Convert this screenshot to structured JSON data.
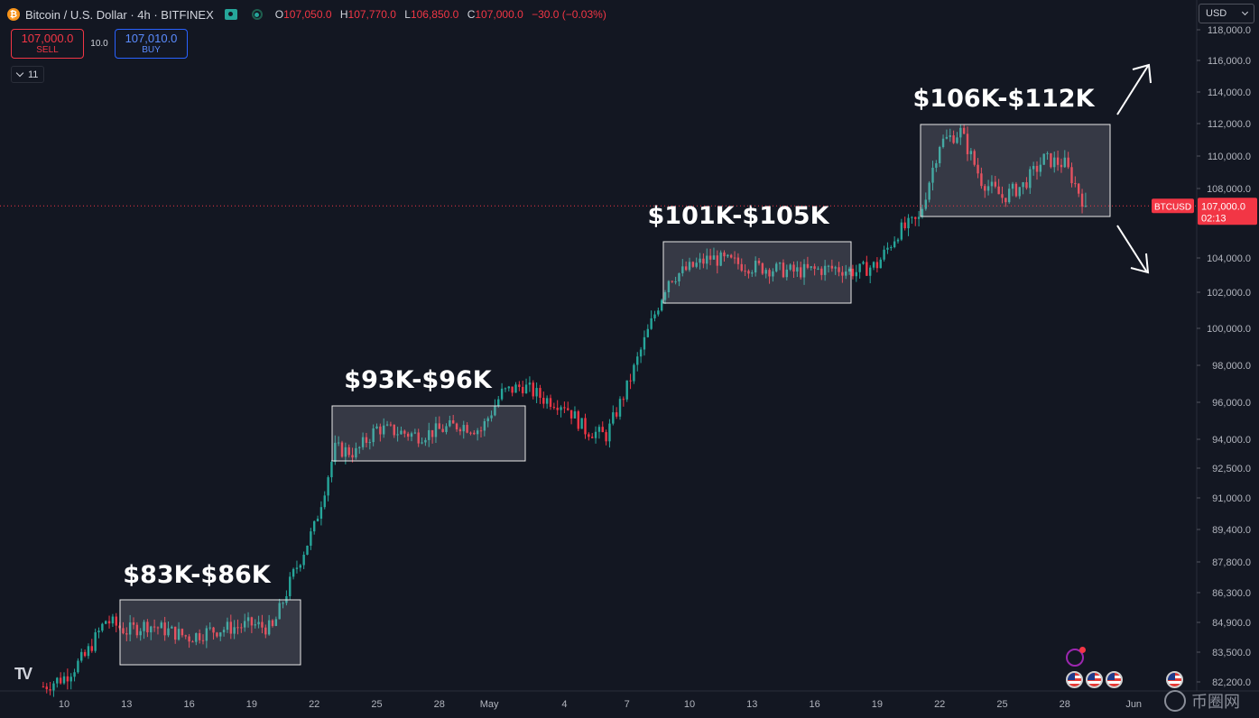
{
  "legend": {
    "icon": "btc-coin-icon",
    "symbol": "Bitcoin / U.S. Dollar · 4h · BITFINEX",
    "open_k": "O",
    "open": "107,050.0",
    "high_k": "H",
    "high": "107,770.0",
    "low_k": "L",
    "low": "106,850.0",
    "close_k": "C",
    "close": "107,000.0",
    "change": "−30.0 (−0.03%)"
  },
  "trade": {
    "sell_price": "107,000.0",
    "sell_label": "SELL",
    "spread": "10.0",
    "buy_price": "107,010.0",
    "buy_label": "BUY"
  },
  "indicators_toggle": "11",
  "currency": "USD",
  "price_scale": {
    "ticks": [
      "118,000.0",
      "116,000.0",
      "114,000.0",
      "112,000.0",
      "110,000.0",
      "108,000.0",
      "104,000.0",
      "102,000.0",
      "100,000.0",
      "98,000.0",
      "96,000.0",
      "94,000.0",
      "92,500.0",
      "91,000.0",
      "89,400.0",
      "87,800.0",
      "86,300.0",
      "84,900.0",
      "83,500.0",
      "82,200.0"
    ],
    "current_label": "BTCUSD",
    "current_price": "107,000.0",
    "countdown": "02:13"
  },
  "time_axis": {
    "labels": [
      "10",
      "13",
      "16",
      "19",
      "22",
      "25",
      "28",
      "May",
      "4",
      "7",
      "10",
      "13",
      "16",
      "19",
      "22",
      "25",
      "28",
      "Jun"
    ]
  },
  "annotations": [
    "$83K-$86K",
    "$93K-$96K",
    "$101K-$105K",
    "$106K-$112K"
  ],
  "watermark": "币圈网",
  "colors": {
    "up": "#26a69a",
    "down": "#f23645",
    "background": "#131722",
    "text": "#d1d4dc"
  },
  "chart_data": {
    "type": "candlestick",
    "title": "Bitcoin / U.S. Dollar · 4h · BITFINEX",
    "ylim": [
      82000,
      118500
    ],
    "x_start": "Apr 9",
    "x_end": "Jun 1",
    "ranges": [
      {
        "label": "$83K-$86K",
        "low": 83000,
        "high": 86000
      },
      {
        "label": "$93K-$96K",
        "low": 93000,
        "high": 96000
      },
      {
        "label": "$101K-$105K",
        "low": 101000,
        "high": 105000
      },
      {
        "label": "$106K-$112K",
        "low": 106000,
        "high": 112000
      }
    ],
    "last_price": 107000,
    "close_anchors": [
      [
        "Apr 9",
        82000
      ],
      [
        "Apr 10",
        82400
      ],
      [
        "Apr 11",
        83300
      ],
      [
        "Apr 12",
        85000
      ],
      [
        "Apr 13",
        84500
      ],
      [
        "Apr 14",
        84800
      ],
      [
        "Apr 16",
        84200
      ],
      [
        "Apr 17",
        84500
      ],
      [
        "Apr 19",
        84800
      ],
      [
        "Apr 20",
        84600
      ],
      [
        "Apr 21",
        87200
      ],
      [
        "Apr 22",
        89500
      ],
      [
        "Apr 23",
        93500
      ],
      [
        "Apr 24",
        93300
      ],
      [
        "Apr 25",
        94600
      ],
      [
        "Apr 27",
        94200
      ],
      [
        "Apr 29",
        94800
      ],
      [
        "Apr 30",
        94500
      ],
      [
        "May 1",
        96500
      ],
      [
        "May 2",
        96900
      ],
      [
        "May 3",
        96200
      ],
      [
        "May 4",
        95900
      ],
      [
        "May 5",
        94500
      ],
      [
        "May 6",
        94200
      ],
      [
        "May 7",
        96800
      ],
      [
        "May 8",
        99800
      ],
      [
        "May 9",
        102800
      ],
      [
        "May 11",
        104000
      ],
      [
        "May 13",
        103500
      ],
      [
        "May 15",
        103200
      ],
      [
        "May 17",
        103400
      ],
      [
        "May 18",
        103200
      ],
      [
        "May 19",
        103600
      ],
      [
        "May 20",
        105500
      ],
      [
        "May 21",
        106200
      ],
      [
        "May 22",
        110800
      ],
      [
        "May 23",
        111500
      ],
      [
        "May 24",
        108500
      ],
      [
        "May 25",
        107500
      ],
      [
        "May 26",
        108200
      ],
      [
        "May 27",
        109800
      ],
      [
        "May 28",
        109500
      ],
      [
        "May 29",
        107000
      ]
    ]
  }
}
